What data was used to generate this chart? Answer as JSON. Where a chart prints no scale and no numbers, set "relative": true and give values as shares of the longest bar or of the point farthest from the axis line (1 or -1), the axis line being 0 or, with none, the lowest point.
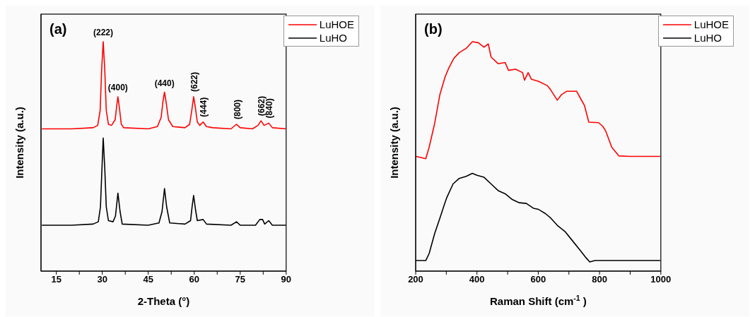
{
  "chart_data": [
    {
      "type": "line",
      "relative": true,
      "xlabel": "2-Theta (°)",
      "ylabel": "Intensity (a.u.)",
      "xlim": [
        10,
        90
      ],
      "xticks": [
        15,
        {
          "value": 22.5,
          "label": null
        },
        30,
        {
          "value": 37.5,
          "label": null
        },
        45,
        {
          "value": 52.5,
          "label": null
        },
        60,
        {
          "value": 67.5,
          "label": null
        },
        75,
        {
          "value": 82.5,
          "label": null
        },
        90
      ],
      "legend": "top right",
      "marker": "none",
      "line_style": "solid",
      "annotations": [
        "(a)",
        {
          "text": "(222)",
          "x": 30.3,
          "y": 1.0
        },
        {
          "text": "(400)",
          "x": 35.1,
          "y": 0.76
        },
        {
          "text": "(440)",
          "x": 50.3,
          "y": 0.78
        },
        {
          "text": "(622)",
          "x": 59.8,
          "y": 0.76
        },
        {
          "text": "(444)",
          "x": 62.9,
          "y": 0.65
        },
        {
          "text": "(800)",
          "x": 73.8,
          "y": 0.64
        },
        {
          "text": "(662)",
          "x": 81.8,
          "y": 0.655
        },
        {
          "text": "(840)",
          "x": 84.3,
          "y": 0.645
        }
      ],
      "series": [
        {
          "name": "LuHOE",
          "color": "#ff0000",
          "x": [
            10.3,
            20,
            27,
            28.5,
            29.3,
            29.8,
            30.3,
            30.8,
            31.3,
            32,
            33,
            34.2,
            34.7,
            35.1,
            35.6,
            36.2,
            37,
            45,
            48,
            49.2,
            49.8,
            50.3,
            50.9,
            51.6,
            53,
            57,
            58.5,
            59.2,
            59.8,
            60.4,
            61,
            61.8,
            62.9,
            64,
            66,
            72,
            73.8,
            75,
            79,
            80.8,
            81.8,
            82.8,
            84.3,
            85.5,
            90
          ],
          "values": [
            0.62,
            0.62,
            0.625,
            0.635,
            0.7,
            0.88,
            1.0,
            0.88,
            0.7,
            0.64,
            0.635,
            0.66,
            0.72,
            0.76,
            0.71,
            0.64,
            0.625,
            0.62,
            0.63,
            0.67,
            0.74,
            0.78,
            0.73,
            0.66,
            0.63,
            0.625,
            0.64,
            0.7,
            0.76,
            0.71,
            0.65,
            0.635,
            0.65,
            0.63,
            0.625,
            0.62,
            0.64,
            0.625,
            0.62,
            0.635,
            0.655,
            0.635,
            0.645,
            0.625,
            0.62
          ]
        },
        {
          "name": "LuHO",
          "color": "#000000",
          "x": [
            10.3,
            20,
            27,
            28.7,
            29.4,
            29.9,
            30.3,
            30.8,
            31.3,
            32,
            33.5,
            34.3,
            35.1,
            35.8,
            36.5,
            45,
            48.5,
            49.5,
            50.3,
            51,
            52,
            57,
            58.8,
            59.3,
            59.8,
            60.4,
            61,
            62.9,
            64,
            72,
            73.8,
            75,
            80,
            81.4,
            82.3,
            83,
            84.3,
            85.5,
            90
          ],
          "values": [
            0.2,
            0.2,
            0.205,
            0.215,
            0.28,
            0.45,
            0.58,
            0.45,
            0.28,
            0.22,
            0.215,
            0.24,
            0.34,
            0.26,
            0.205,
            0.2,
            0.21,
            0.26,
            0.36,
            0.28,
            0.21,
            0.205,
            0.22,
            0.28,
            0.33,
            0.27,
            0.22,
            0.225,
            0.205,
            0.2,
            0.215,
            0.2,
            0.2,
            0.225,
            0.225,
            0.205,
            0.22,
            0.2,
            0.2
          ]
        }
      ]
    },
    {
      "type": "line",
      "relative": true,
      "xlabel": "Raman Shift (cm$^{-1}$)",
      "ylabel": "Intensity (a.u.)",
      "xlim": [
        200,
        1000
      ],
      "xticks": [
        200,
        {
          "value": 300,
          "label": null
        },
        400,
        {
          "value": 500,
          "label": null
        },
        600,
        {
          "value": 700,
          "label": null
        },
        800,
        {
          "value": 900,
          "label": null
        },
        1000
      ],
      "legend": "top right",
      "marker": "none",
      "line_style": "solid",
      "annotations": [
        "(b)"
      ],
      "series": [
        {
          "name": "LuHOE",
          "color": "#ff0000",
          "x": [
            201,
            233,
            244,
            262,
            279,
            296,
            308,
            325,
            342,
            365,
            385,
            405,
            423,
            437,
            446,
            469,
            492,
            503,
            526,
            549,
            555,
            567,
            578,
            601,
            630,
            641,
            662,
            676,
            693,
            725,
            739,
            751,
            765,
            797,
            811,
            820,
            840,
            863,
            900,
            998
          ],
          "values": [
            0.5,
            0.49,
            0.54,
            0.644,
            0.769,
            0.846,
            0.885,
            0.928,
            0.952,
            0.971,
            1.0,
            0.995,
            0.976,
            0.99,
            0.933,
            0.904,
            0.909,
            0.875,
            0.88,
            0.865,
            0.832,
            0.865,
            0.836,
            0.827,
            0.808,
            0.789,
            0.745,
            0.769,
            0.784,
            0.784,
            0.75,
            0.721,
            0.649,
            0.647,
            0.63,
            0.611,
            0.539,
            0.502,
            0.5,
            0.5
          ]
        },
        {
          "name": "LuHO",
          "color": "#000000",
          "x": [
            201,
            233,
            244,
            262,
            279,
            293,
            302,
            322,
            342,
            365,
            385,
            400,
            423,
            446,
            469,
            492,
            515,
            538,
            561,
            584,
            601,
            624,
            641,
            664,
            687,
            710,
            739,
            756,
            768,
            785,
            998
          ],
          "values": [
            0.046,
            0.046,
            0.077,
            0.164,
            0.231,
            0.288,
            0.322,
            0.38,
            0.404,
            0.413,
            0.426,
            0.418,
            0.409,
            0.38,
            0.351,
            0.337,
            0.312,
            0.298,
            0.295,
            0.274,
            0.269,
            0.25,
            0.231,
            0.197,
            0.173,
            0.135,
            0.087,
            0.058,
            0.04,
            0.046,
            0.046
          ]
        }
      ]
    }
  ]
}
